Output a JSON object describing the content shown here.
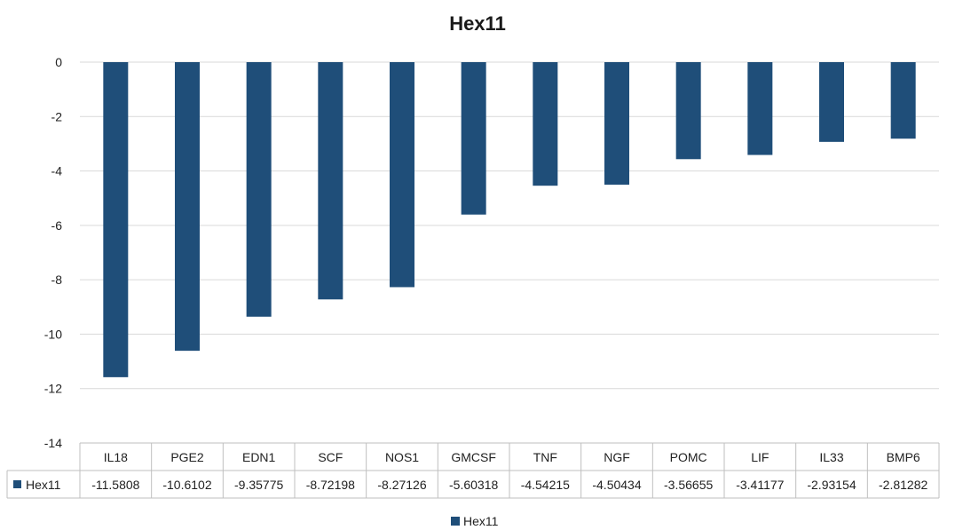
{
  "chart_data": {
    "type": "bar",
    "title": "Hex11",
    "categories": [
      "IL18",
      "PGE2",
      "EDN1",
      "SCF",
      "NOS1",
      "GMCSF",
      "TNF",
      "NGF",
      "POMC",
      "LIF",
      "IL33",
      "BMP6"
    ],
    "series": [
      {
        "name": "Hex11",
        "values": [
          -11.5808,
          -10.6102,
          -9.35775,
          -8.72198,
          -8.27126,
          -5.60318,
          -4.54215,
          -4.50434,
          -3.56655,
          -3.41177,
          -2.93154,
          -2.81282
        ],
        "value_labels": [
          "-11.5808",
          "-10.6102",
          "-9.35775",
          "-8.72198",
          "-8.27126",
          "-5.60318",
          "-4.54215",
          "-4.50434",
          "-3.56655",
          "-3.41177",
          "-2.93154",
          "-2.81282"
        ],
        "color": "#1f4e79"
      }
    ],
    "yticks": [
      "0",
      "-2",
      "-4",
      "-6",
      "-8",
      "-10",
      "-12",
      "-14"
    ],
    "ylim": [
      -14,
      0
    ],
    "grid": true,
    "data_table": true,
    "legend_position": "bottom"
  }
}
